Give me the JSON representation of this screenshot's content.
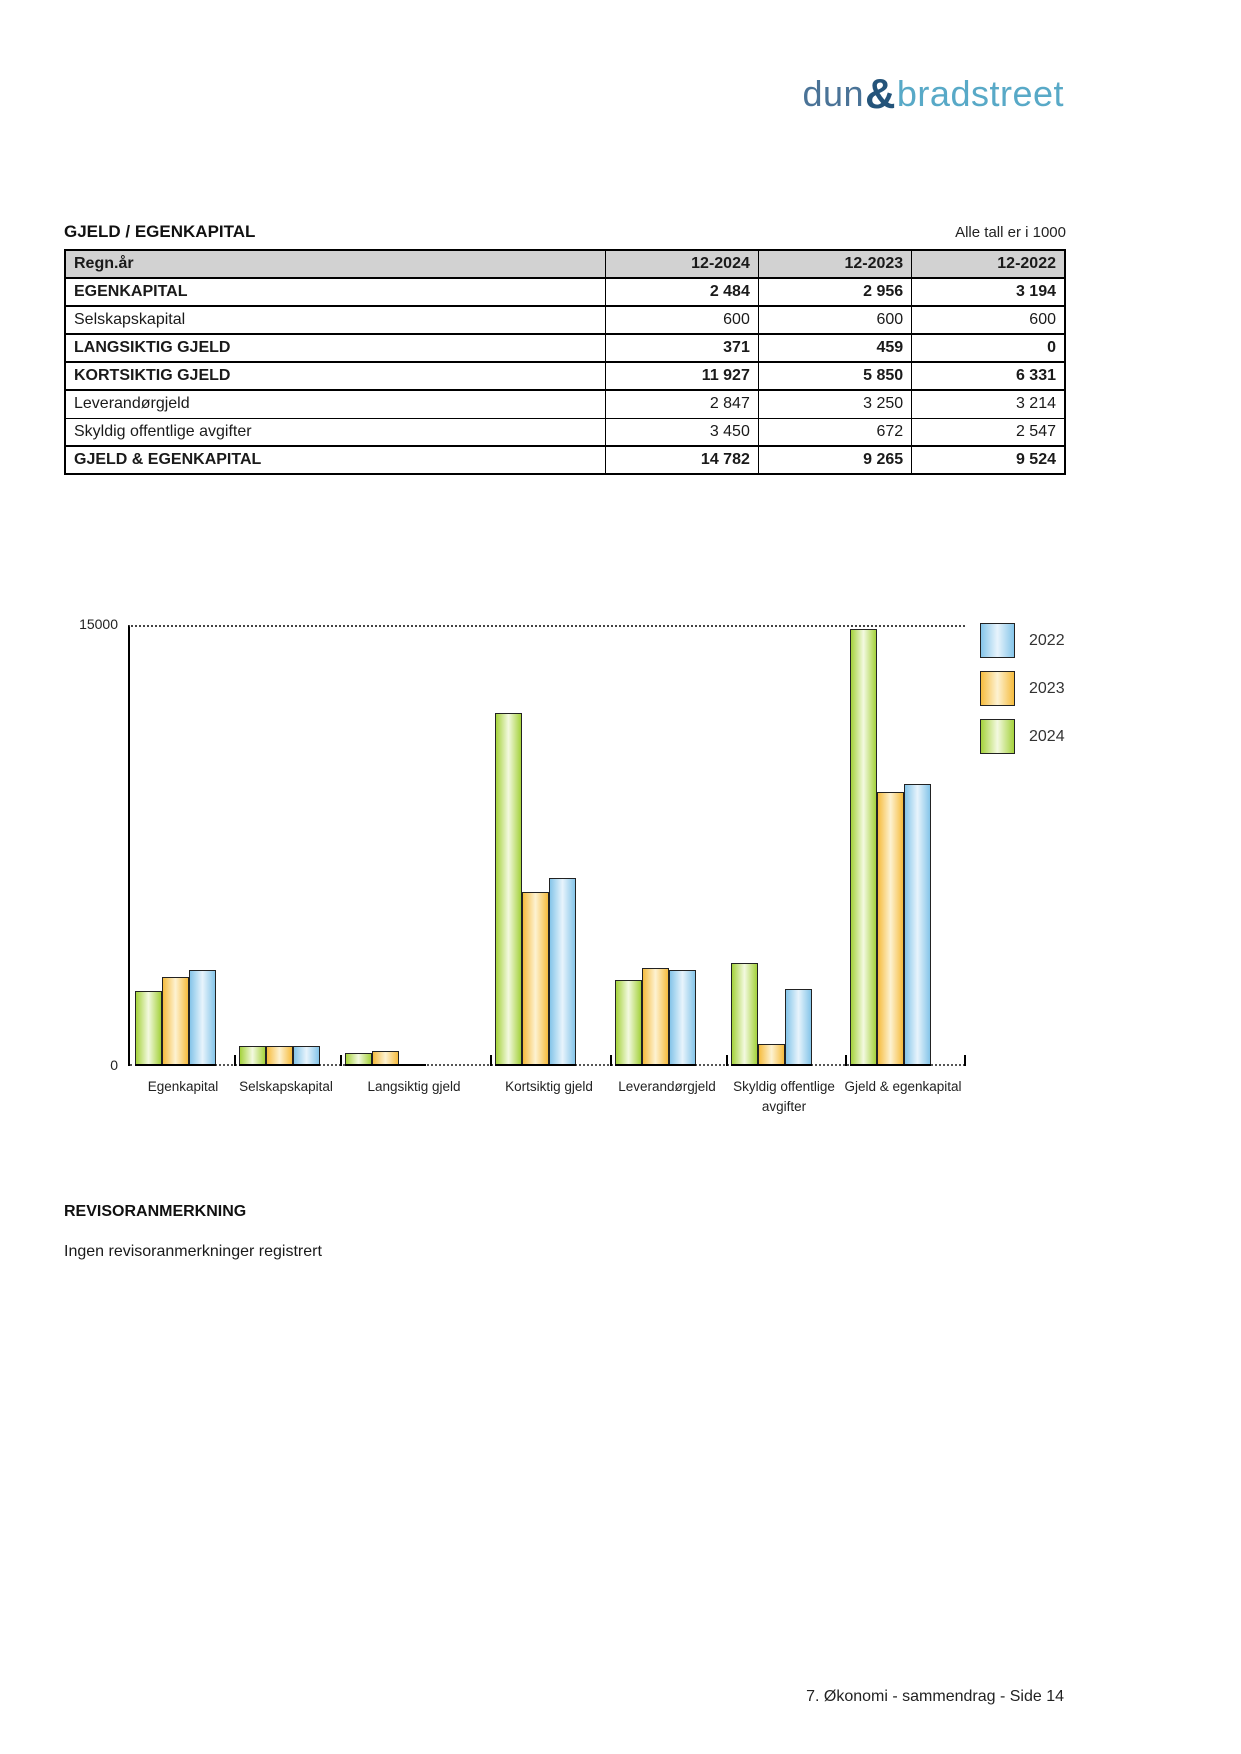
{
  "brand": {
    "dun": "dun",
    "amp": "&",
    "bradstreet": "bradstreet"
  },
  "section": {
    "title": "GJELD / EGENKAPITAL",
    "units_note": "Alle tall er i 1000"
  },
  "table": {
    "header": [
      "Regn.år",
      "12-2024",
      "12-2023",
      "12-2022"
    ],
    "rows": [
      {
        "label": "EGENKAPITAL",
        "bold": true,
        "values": [
          "2 484",
          "2 956",
          "3 194"
        ]
      },
      {
        "label": "Selskapskapital",
        "bold": false,
        "values": [
          "600",
          "600",
          "600"
        ]
      },
      {
        "label": "LANGSIKTIG GJELD",
        "bold": true,
        "values": [
          "371",
          "459",
          "0"
        ]
      },
      {
        "label": "KORTSIKTIG GJELD",
        "bold": true,
        "values": [
          "11 927",
          "5 850",
          "6 331"
        ]
      },
      {
        "label": "Leverandørgjeld",
        "bold": false,
        "values": [
          "2 847",
          "3 250",
          "3 214"
        ]
      },
      {
        "label": "Skyldig offentlige avgifter",
        "bold": false,
        "values": [
          "3 450",
          "672",
          "2 547"
        ]
      },
      {
        "label": "GJELD & EGENKAPITAL",
        "bold": true,
        "values": [
          "14 782",
          "9 265",
          "9 524"
        ]
      }
    ]
  },
  "chart_data": {
    "type": "bar",
    "title": "",
    "xlabel": "",
    "ylabel": "",
    "ylim": [
      0,
      15000
    ],
    "ytick_top": "15000",
    "ytick_zero": "0",
    "grid": "dotted line at y = 15000 only",
    "legend_position": "right",
    "legend_order": [
      "2022",
      "2023",
      "2024"
    ],
    "categories": [
      "Egenkapital",
      "Selskapskapital",
      "Langsiktig gjeld",
      "Kortsiktig gjeld",
      "Leverandørgjeld",
      "Skyldig offentlige avgifter",
      "Gjeld & egenkapital"
    ],
    "series": [
      {
        "name": "2024",
        "color_edge": "#a5d23c",
        "color_center": "#f3f9e0",
        "values": [
          2484,
          600,
          371,
          11927,
          2847,
          3450,
          14782
        ]
      },
      {
        "name": "2023",
        "color_edge": "#f6bc3e",
        "color_center": "#fdf2d2",
        "values": [
          2956,
          600,
          459,
          5850,
          3250,
          672,
          9265
        ]
      },
      {
        "name": "2022",
        "color_edge": "#85c5e9",
        "color_center": "#e8f4fc",
        "values": [
          3194,
          600,
          0,
          6331,
          3214,
          2547,
          9524
        ]
      }
    ]
  },
  "revisor": {
    "heading": "REVISORANMERKNING",
    "text": "Ingen revisoranmerkninger registrert"
  },
  "footer": {
    "text": "7. Økonomi - sammendrag - Side 14"
  }
}
